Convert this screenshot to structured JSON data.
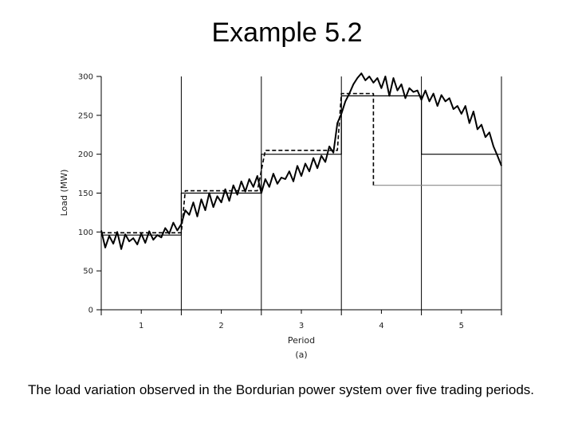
{
  "slide": {
    "title": "Example 5.2",
    "caption": "The load variation observed in the Bordurian power system over five trading periods."
  },
  "chart_data": {
    "type": "line",
    "xlabel": "Period",
    "panel_label": "(a)",
    "ylabel": "Load (MW)",
    "xlim": [
      0.5,
      5.5
    ],
    "ylim": [
      0,
      300
    ],
    "y_ticks": [
      0,
      50,
      100,
      150,
      200,
      250,
      300
    ],
    "categories": [
      "1",
      "2",
      "3",
      "4",
      "5"
    ],
    "period_boundaries": [
      1.5,
      2.5,
      3.5,
      4.5
    ],
    "grid": false,
    "legend": "none",
    "series": [
      {
        "style": "solid-jagged",
        "color": "#000000",
        "x": [
          0.5,
          0.55,
          0.6,
          0.65,
          0.7,
          0.75,
          0.8,
          0.85,
          0.9,
          0.95,
          1.0,
          1.05,
          1.1,
          1.15,
          1.2,
          1.25,
          1.3,
          1.35,
          1.4,
          1.45,
          1.5,
          1.55,
          1.6,
          1.65,
          1.7,
          1.75,
          1.8,
          1.85,
          1.9,
          1.95,
          2.0,
          2.05,
          2.1,
          2.15,
          2.2,
          2.25,
          2.3,
          2.35,
          2.4,
          2.45,
          2.5,
          2.55,
          2.6,
          2.65,
          2.7,
          2.75,
          2.8,
          2.85,
          2.9,
          2.95,
          3.0,
          3.05,
          3.1,
          3.15,
          3.2,
          3.25,
          3.3,
          3.35,
          3.4,
          3.45,
          3.5,
          3.55,
          3.6,
          3.65,
          3.7,
          3.75,
          3.8,
          3.85,
          3.9,
          3.95,
          4.0,
          4.05,
          4.1,
          4.15,
          4.2,
          4.25,
          4.3,
          4.35,
          4.4,
          4.45,
          4.5,
          4.55,
          4.6,
          4.65,
          4.7,
          4.75,
          4.8,
          4.85,
          4.9,
          4.95,
          5.0,
          5.05,
          5.1,
          5.15,
          5.2,
          5.25,
          5.3,
          5.35,
          5.4,
          5.45,
          5.5
        ],
        "values": [
          102,
          80,
          95,
          85,
          100,
          78,
          97,
          88,
          92,
          84,
          98,
          86,
          101,
          90,
          96,
          93,
          105,
          98,
          112,
          102,
          110,
          128,
          122,
          138,
          120,
          142,
          128,
          150,
          132,
          146,
          138,
          155,
          140,
          160,
          148,
          165,
          152,
          168,
          158,
          172,
          150,
          168,
          158,
          175,
          162,
          170,
          168,
          178,
          165,
          185,
          172,
          188,
          178,
          195,
          182,
          198,
          190,
          210,
          202,
          240,
          252,
          268,
          278,
          290,
          298,
          304,
          295,
          300,
          292,
          298,
          285,
          300,
          275,
          298,
          282,
          290,
          272,
          285,
          280,
          282,
          270,
          282,
          268,
          278,
          262,
          276,
          268,
          272,
          258,
          262,
          252,
          262,
          240,
          255,
          232,
          238,
          222,
          228,
          210,
          198,
          185
        ]
      },
      {
        "style": "solid-step",
        "color": "#000000",
        "x": [
          0.5,
          1.5,
          1.5,
          2.5,
          2.5,
          3.5,
          3.5,
          4.5,
          4.5,
          5.5
        ],
        "values": [
          96,
          96,
          150,
          150,
          200,
          200,
          275,
          275,
          200,
          200
        ]
      },
      {
        "style": "dashed-step",
        "color": "#000000",
        "x": [
          0.5,
          1.5,
          1.55,
          2.45,
          2.55,
          3.45,
          3.5,
          3.9,
          3.9
        ],
        "values": [
          99,
          99,
          153,
          153,
          205,
          205,
          278,
          278,
          160
        ]
      },
      {
        "style": "solid-flat",
        "color": "#888888",
        "x": [
          3.9,
          5.5
        ],
        "values": [
          160,
          160
        ]
      }
    ]
  }
}
